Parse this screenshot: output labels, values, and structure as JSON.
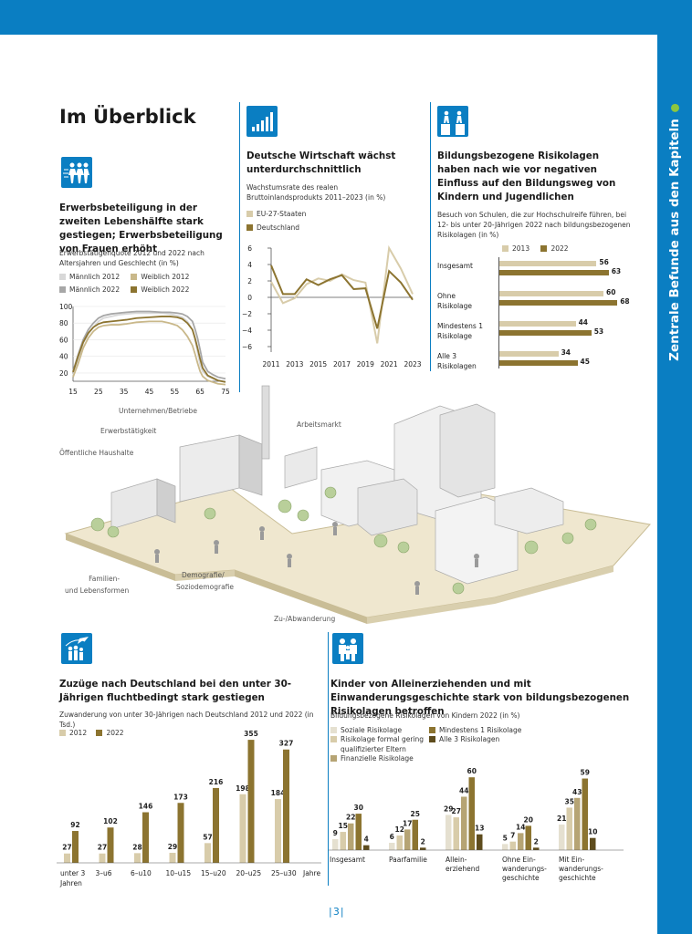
{
  "side_title": "Zentrale Befunde aus den Kapiteln",
  "page_title": "Im Überblick",
  "page_number": "3",
  "colors": {
    "blue": "#0a7ec2",
    "light2012": "#d8ccaa",
    "dark2022": "#8c7430",
    "male2012": "#d8d8d8",
    "female2012": "#c9b88a",
    "male2022": "#a7a7a7",
    "female2022": "#8c7430",
    "green_dot": "#8dc63f"
  },
  "section_employment": {
    "icon": "workers-icon",
    "title": "Erwerbsbeteiligung in der zweiten Lebenshälfte stark gestiegen; Erwerbsbeteiligung von Frauen erhöht",
    "subtitle": "Erwerbstätigenquote 2012 und 2022 nach Altersjahren und Geschlecht (in %)",
    "legend": [
      "Männlich 2012",
      "Weiblich 2012",
      "Männlich 2022",
      "Weiblich 2022"
    ]
  },
  "section_economy": {
    "icon": "growth-bars-icon",
    "title": "Deutsche Wirtschaft wächst unterdurchschnittlich",
    "subtitle": "Wachstumsrate des realen Bruttoinlandsprodukts 2011–2023 (in %)",
    "legend": [
      "EU-27-Staaten",
      "Deutschland"
    ]
  },
  "section_education": {
    "icon": "climbing-figures-icon",
    "title": "Bildungsbezogene Risikolagen haben nach wie vor negativen Einfluss auf den Bildungsweg von Kindern und Jugendlichen",
    "subtitle": "Besuch von Schulen, die zur Hochschulreife führen, bei 12- bis unter 20-Jährigen 2022 nach bildungsbezogenen Risikolagen (in %)",
    "legend": [
      "2013",
      "2022"
    ],
    "rows": [
      {
        "label_line1": "Insgesamt",
        "label_line2": "",
        "v2013": "56",
        "v2022": "63"
      },
      {
        "label_line1": "Ohne",
        "label_line2": "Risikolage",
        "v2013": "60",
        "v2022": "68"
      },
      {
        "label_line1": "Mindestens 1",
        "label_line2": "Risikolage",
        "v2013": "44",
        "v2022": "53"
      },
      {
        "label_line1": "Alle 3",
        "label_line2": "Risikolagen",
        "v2013": "34",
        "v2022": "45"
      }
    ]
  },
  "illustration_labels": {
    "unternehmen": "Unternehmen/Betriebe",
    "erwerbstaetigkeit": "Erwerbstätigkeit",
    "haushalte": "Öffentliche Haushalte",
    "arbeitsmarkt": "Arbeitsmarkt",
    "familien_1": "Familien-",
    "familien_2": "und Lebensformen",
    "demografie_1": "Demografie/",
    "demografie_2": "Soziodemografie",
    "wanderung": "Zu-/Abwanderung"
  },
  "section_migration": {
    "icon": "migration-icon",
    "title": "Zuzüge nach Deutschland bei den unter 30-Jährigen fluchtbedingt stark gestiegen",
    "subtitle": "Zuwanderung von unter 30-Jährigen nach Deutschland 2012 und 2022 (in Tsd.)",
    "legend": [
      "2012",
      "2022"
    ],
    "category_sub": "Jahren",
    "axis_unit": "Jahre"
  },
  "section_children": {
    "icon": "family-icon",
    "title": "Kinder von Alleinerziehenden und mit Einwanderungsgeschichte stark von bildungsbezogenen Risikolagen betroffen",
    "subtitle": "Bildungsbezogene Risikolagen von Kindern 2022 (in %)",
    "legend": [
      {
        "line1": "Soziale Risikolage",
        "line2": ""
      },
      {
        "line1": "Risikolage formal gering",
        "line2": "qualifizierter Eltern"
      },
      {
        "line1": "Finanzielle Risikolage",
        "line2": ""
      },
      {
        "line1": "Mindestens 1 Risikolage",
        "line2": ""
      },
      {
        "line1": "Alle 3 Risikolagen",
        "line2": ""
      }
    ],
    "groups": [
      {
        "line1": "Insgesamt",
        "line2": "",
        "line3": ""
      },
      {
        "line1": "Paarfamilie",
        "line2": "",
        "line3": ""
      },
      {
        "line1": "Allein-",
        "line2": "erziehend",
        "line3": ""
      },
      {
        "line1": "Ohne Ein-",
        "line2": "wanderungs-",
        "line3": "geschichte"
      },
      {
        "line1": "Mit Ein-",
        "line2": "wanderungs-",
        "line3": "geschichte"
      }
    ]
  },
  "chart_data": [
    {
      "type": "line",
      "xlabel": "",
      "ylabel": "",
      "x_ticks": [
        "15",
        "25",
        "35",
        "45",
        "55",
        "65",
        "75"
      ],
      "y_ticks": [
        "20",
        "40",
        "60",
        "80",
        "100"
      ],
      "xlim": [
        15,
        75
      ],
      "ylim": [
        10,
        100
      ],
      "x": [
        15,
        17,
        19,
        21,
        23,
        25,
        27,
        30,
        33,
        36,
        40,
        45,
        50,
        53,
        56,
        58,
        60,
        62,
        63,
        64,
        65,
        66,
        68,
        70,
        72,
        75
      ],
      "series": [
        {
          "name": "Männlich 2012",
          "values": [
            17,
            35,
            56,
            67,
            75,
            82,
            86,
            88,
            90,
            91,
            92,
            92,
            92,
            91,
            89,
            87,
            82,
            72,
            60,
            45,
            30,
            22,
            16,
            13,
            11,
            10
          ]
        },
        {
          "name": "Weiblich 2012",
          "values": [
            15,
            31,
            50,
            62,
            70,
            75,
            77,
            78,
            78,
            79,
            81,
            82,
            82,
            80,
            77,
            72,
            64,
            53,
            43,
            32,
            22,
            16,
            11,
            9,
            7,
            6
          ]
        },
        {
          "name": "Männlich 2022",
          "values": [
            22,
            42,
            60,
            72,
            80,
            86,
            89,
            91,
            92,
            93,
            94,
            94,
            93,
            93,
            92,
            91,
            88,
            82,
            73,
            62,
            48,
            33,
            22,
            18,
            15,
            13
          ]
        },
        {
          "name": "Weiblich 2022",
          "values": [
            21,
            40,
            57,
            68,
            75,
            79,
            81,
            82,
            83,
            84,
            86,
            87,
            88,
            88,
            87,
            85,
            80,
            72,
            62,
            50,
            37,
            26,
            17,
            14,
            11,
            9
          ]
        }
      ]
    },
    {
      "type": "line",
      "xlabel": "",
      "ylabel": "",
      "x_ticks": [
        "2011",
        "2013",
        "2015",
        "2017",
        "2019",
        "2021",
        "2023"
      ],
      "y_ticks": [
        "6",
        "4",
        "2",
        "0",
        "−2",
        "−4",
        "−6"
      ],
      "xlim": [
        2011,
        2023
      ],
      "ylim": [
        -6,
        6
      ],
      "x": [
        2011,
        2012,
        2013,
        2014,
        2015,
        2016,
        2017,
        2018,
        2019,
        2020,
        2021,
        2022,
        2023
      ],
      "series": [
        {
          "name": "EU-27-Staaten",
          "values": [
            1.9,
            -0.7,
            -0.1,
            1.6,
            2.3,
            2.0,
            2.8,
            2.1,
            1.8,
            -5.6,
            6.0,
            3.5,
            0.4
          ]
        },
        {
          "name": "Deutschland",
          "values": [
            3.9,
            0.4,
            0.4,
            2.2,
            1.5,
            2.2,
            2.7,
            1.0,
            1.1,
            -3.8,
            3.2,
            1.8,
            -0.3
          ]
        }
      ]
    },
    {
      "type": "bar",
      "categories": [
        "Insgesamt",
        "Ohne Risikolage",
        "Mindestens 1 Risikolage",
        "Alle 3 Risikolagen"
      ],
      "series": [
        {
          "name": "2013",
          "values": [
            56,
            60,
            44,
            34
          ]
        },
        {
          "name": "2022",
          "values": [
            63,
            68,
            53,
            45
          ]
        }
      ],
      "xlim": [
        0,
        70
      ]
    },
    {
      "type": "bar",
      "categories": [
        "unter 3",
        "3–u6",
        "6–u10",
        "10–u15",
        "15–u20",
        "20–u25",
        "25–u30"
      ],
      "series": [
        {
          "name": "2012",
          "values": [
            27,
            27,
            28,
            29,
            57,
            198,
            184
          ]
        },
        {
          "name": "2022",
          "values": [
            92,
            102,
            146,
            173,
            216,
            355,
            327
          ]
        }
      ],
      "ylim": [
        0,
        380
      ]
    },
    {
      "type": "bar",
      "categories": [
        "Insgesamt",
        "Paarfamilie",
        "Allein-erziehend",
        "Ohne Einwanderungsgeschichte",
        "Mit Einwanderungsgeschichte"
      ],
      "series": [
        {
          "name": "Soziale Risikolage",
          "values": [
            9,
            6,
            29,
            5,
            21
          ]
        },
        {
          "name": "Risikolage formal gering qualifizierter Eltern",
          "values": [
            15,
            12,
            27,
            7,
            35
          ]
        },
        {
          "name": "Finanzielle Risikolage",
          "values": [
            22,
            17,
            44,
            14,
            43
          ]
        },
        {
          "name": "Mindestens 1 Risikolage",
          "values": [
            30,
            25,
            60,
            20,
            59
          ]
        },
        {
          "name": "Alle 3 Risikolagen",
          "values": [
            4,
            2,
            13,
            2,
            10
          ]
        }
      ],
      "ylim": [
        0,
        65
      ]
    }
  ]
}
